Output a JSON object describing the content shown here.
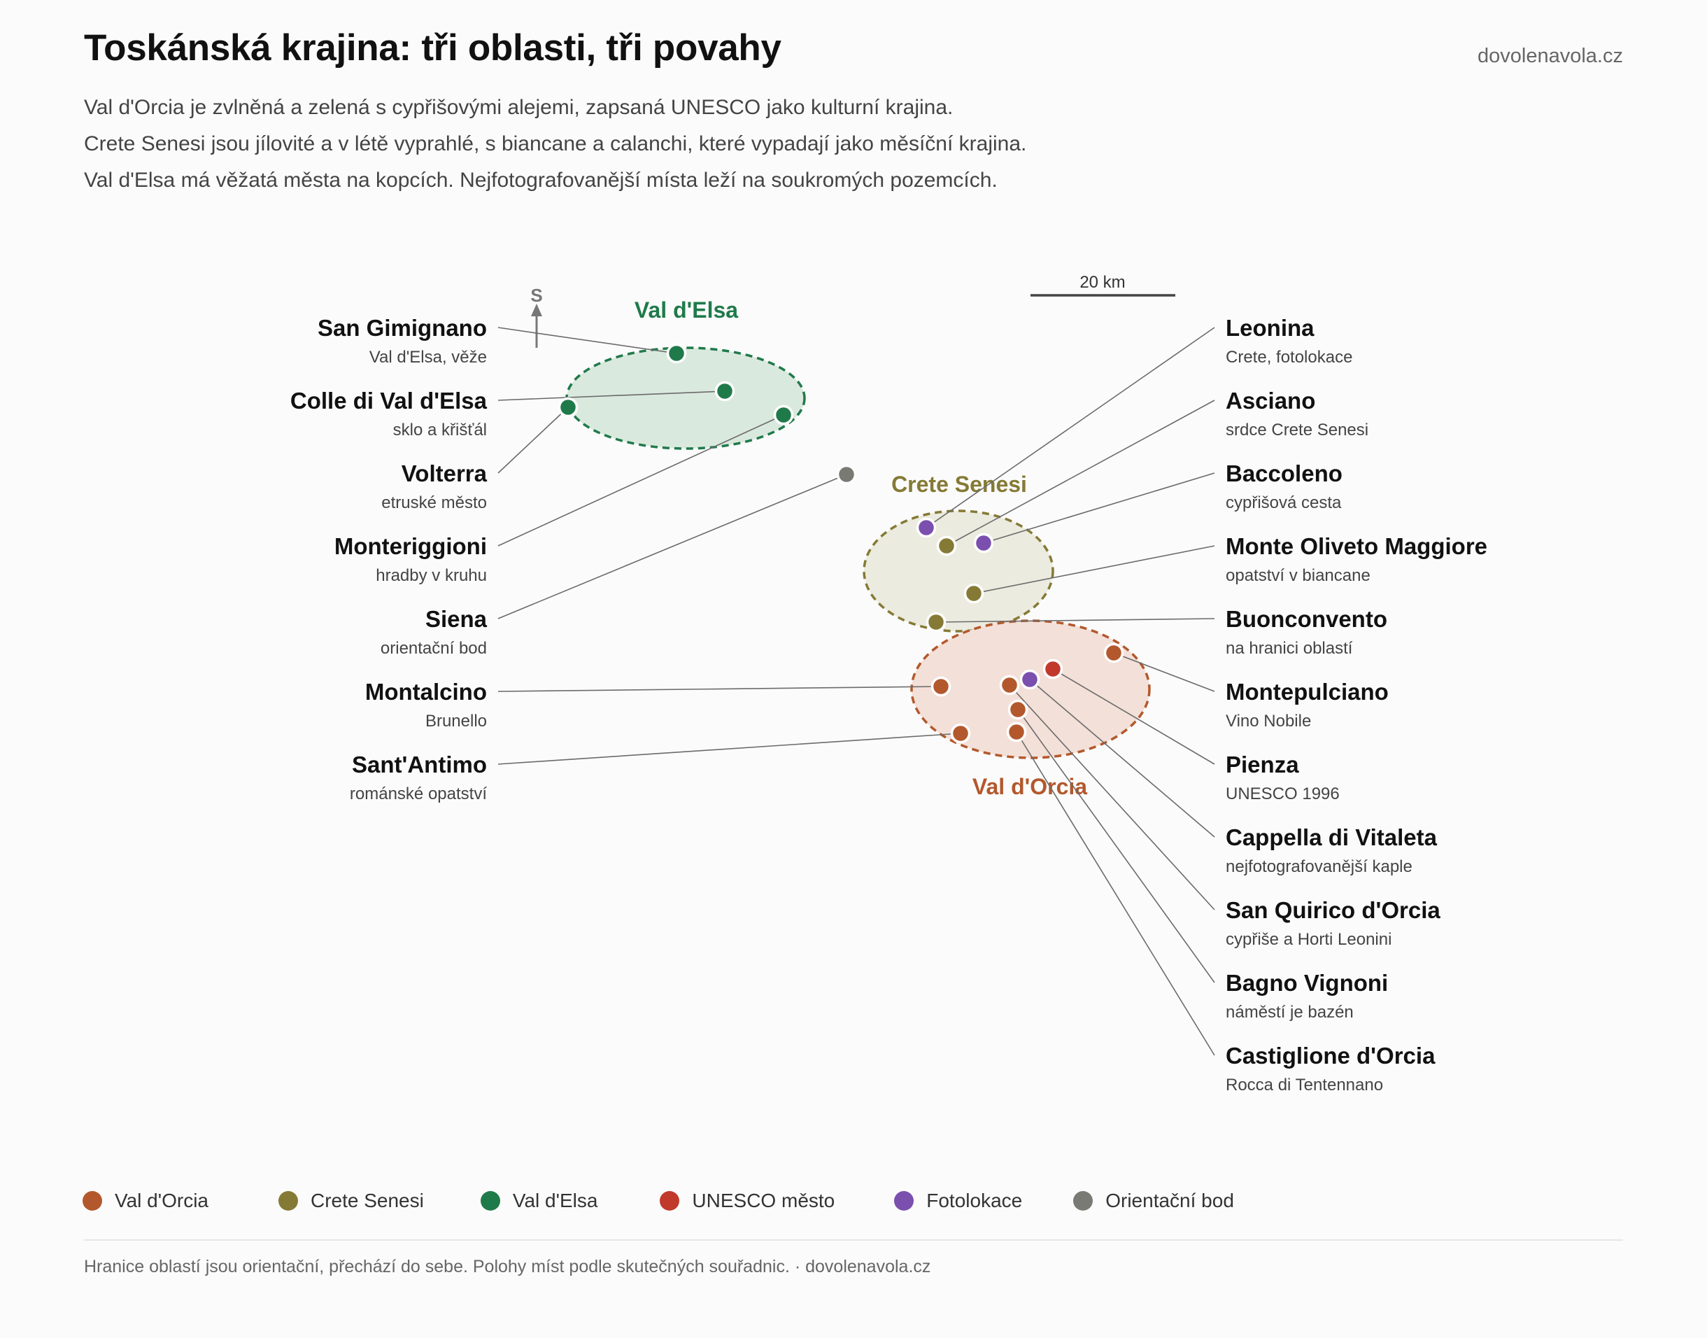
{
  "header": {
    "title": "Toskánská krajina: tři oblasti, tři povahy",
    "brand": "dovolenavola.cz",
    "intro": [
      "Val d'Orcia je zvlněná a zelená s cypřišovými alejemi, zapsaná UNESCO jako kulturní krajina.",
      "Crete Senesi jsou jílovité a v létě vyprahlé, s biancane a calanchi, které vypadají jako měsíční krajina.",
      "Val d'Elsa má věžatá města na kopcích. Nejfotografovanější místa leží na soukromých pozemcích."
    ]
  },
  "map": {
    "north_label": "S",
    "scale_label": "20 km",
    "regions": [
      {
        "id": "elsa",
        "name": "Val d'Elsa",
        "color": "#1f7a4a",
        "fill": "#dae9de"
      },
      {
        "id": "crete",
        "name": "Crete Senesi",
        "color": "#857a35",
        "fill": "#ecebdf"
      },
      {
        "id": "orcia",
        "name": "Val d'Orcia",
        "color": "#b3582c",
        "fill": "#f3e0d8"
      }
    ],
    "places": [
      {
        "name": "San Gimignano",
        "desc": "Val d'Elsa, věže",
        "category": "elsa"
      },
      {
        "name": "Colle di Val d'Elsa",
        "desc": "sklo a křišťál",
        "category": "elsa"
      },
      {
        "name": "Volterra",
        "desc": "etruské město",
        "category": "elsa"
      },
      {
        "name": "Monteriggioni",
        "desc": "hradby v kruhu",
        "category": "elsa"
      },
      {
        "name": "Siena",
        "desc": "orientační bod",
        "category": "orient"
      },
      {
        "name": "Montalcino",
        "desc": "Brunello",
        "category": "orcia"
      },
      {
        "name": "Sant'Antimo",
        "desc": "románské opatství",
        "category": "orcia"
      },
      {
        "name": "Leonina",
        "desc": "Crete, fotolokace",
        "category": "photo"
      },
      {
        "name": "Asciano",
        "desc": "srdce Crete Senesi",
        "category": "crete"
      },
      {
        "name": "Baccoleno",
        "desc": "cypřišová cesta",
        "category": "photo"
      },
      {
        "name": "Monte Oliveto Maggiore",
        "desc": "opatství v biancane",
        "category": "crete"
      },
      {
        "name": "Buonconvento",
        "desc": "na hranici oblastí",
        "category": "crete"
      },
      {
        "name": "Montepulciano",
        "desc": "Vino Nobile",
        "category": "orcia"
      },
      {
        "name": "Pienza",
        "desc": "UNESCO 1996",
        "category": "unesco"
      },
      {
        "name": "Cappella di Vitaleta",
        "desc": "nejfotografovanější kaple",
        "category": "photo"
      },
      {
        "name": "San Quirico d'Orcia",
        "desc": "cypřiše a Horti Leonini",
        "category": "orcia"
      },
      {
        "name": "Bagno Vignoni",
        "desc": "náměstí je bazén",
        "category": "orcia"
      },
      {
        "name": "Castiglione d'Orcia",
        "desc": "Rocca di Tentennano",
        "category": "orcia"
      }
    ]
  },
  "legend": [
    {
      "label": "Val d'Orcia",
      "color": "#b3582c"
    },
    {
      "label": "Crete Senesi",
      "color": "#857a35"
    },
    {
      "label": "Val d'Elsa",
      "color": "#1f7a4a"
    },
    {
      "label": "UNESCO město",
      "color": "#c0392b"
    },
    {
      "label": "Fotolokace",
      "color": "#7b4fae"
    },
    {
      "label": "Orientační bod",
      "color": "#7a7a74"
    }
  ],
  "footer": "Hranice oblastí jsou orientační, přechází do sebe. Polohy míst podle skutečných souřadnic. · dovolenavola.cz"
}
